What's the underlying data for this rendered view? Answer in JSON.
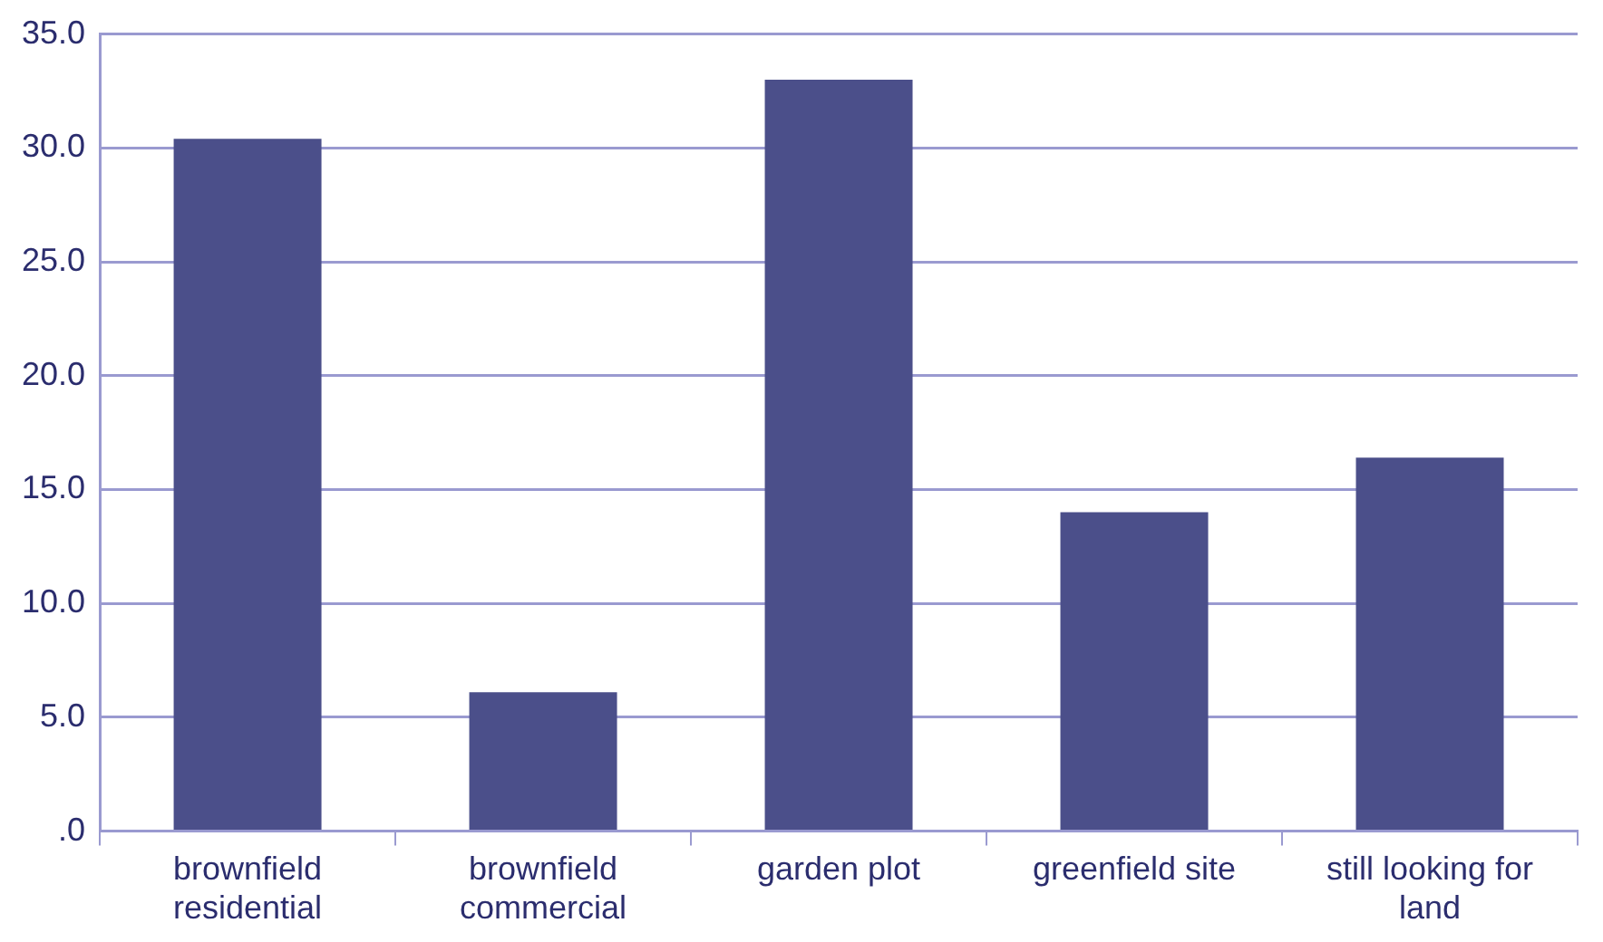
{
  "chart_data": {
    "type": "bar",
    "categories": [
      "brownfield residential",
      "brownfield commercial",
      "garden plot",
      "greenfield site",
      "still looking for land"
    ],
    "values": [
      30.4,
      6.1,
      33.0,
      14.0,
      16.4
    ],
    "color": "#4b4f8a",
    "ylim": [
      0,
      35
    ],
    "yticks": [
      {
        "value": 0,
        "label": ".0"
      },
      {
        "value": 5,
        "label": "5.0"
      },
      {
        "value": 10,
        "label": "10.0"
      },
      {
        "value": 15,
        "label": "15.0"
      },
      {
        "value": 20,
        "label": "20.0"
      },
      {
        "value": 25,
        "label": "25.0"
      },
      {
        "value": 30,
        "label": "30.0"
      },
      {
        "value": 35,
        "label": "35.0"
      }
    ],
    "grid": "y",
    "legend": false
  }
}
